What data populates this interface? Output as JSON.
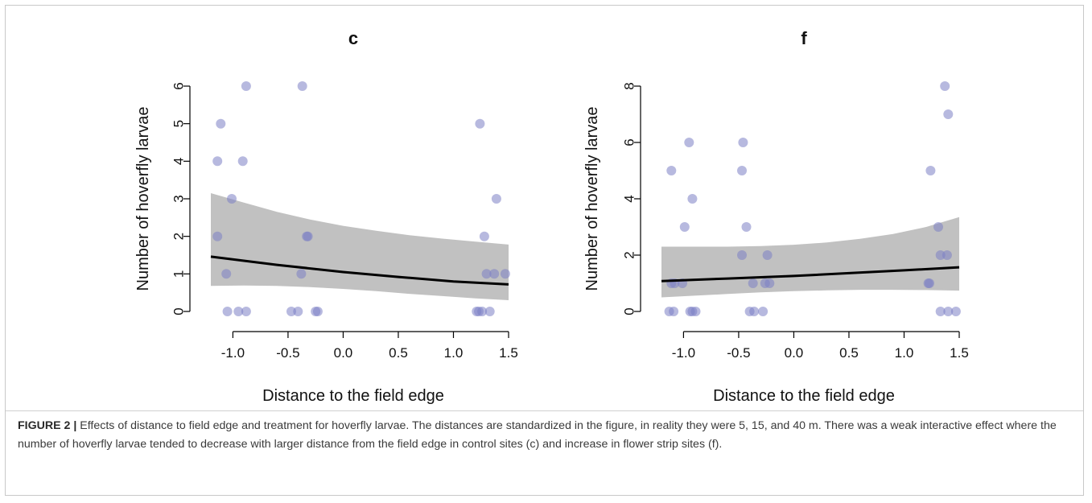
{
  "figure": {
    "caption_label": "FIGURE 2 |",
    "caption_text": " Effects of distance to field edge and treatment for hoverfly larvae. The distances are standardized in the figure, in reality they were 5, 15, and 40 m. There was a weak interactive effect where the number of hoverfly larvae tended to decrease with larger distance from the field edge in control sites (c) and increase in flower strip sites (f)."
  },
  "colors": {
    "point": "#7b7fc4",
    "band": "#c1c1c1",
    "fit_line": "#000000"
  },
  "chart_data": [
    {
      "type": "scatter",
      "title": "c",
      "xlabel": "Distance to the field edge",
      "ylabel": "Number of hoverfly larvae",
      "xlim": [
        -1.2,
        1.5
      ],
      "ylim": [
        0,
        6
      ],
      "x_ticks": [
        -1.0,
        -0.5,
        0.0,
        0.5,
        1.0,
        1.5
      ],
      "x_tick_labels": [
        "-1.0",
        "-0.5",
        "0.0",
        "0.5",
        "1.0",
        "1.5"
      ],
      "y_ticks": [
        0,
        1,
        2,
        3,
        4,
        5,
        6
      ],
      "y_tick_labels": [
        "0",
        "1",
        "2",
        "3",
        "4",
        "5",
        "6"
      ],
      "points": [
        [
          -1.14,
          4
        ],
        [
          -1.11,
          5
        ],
        [
          -1.14,
          2
        ],
        [
          -1.06,
          1
        ],
        [
          -1.05,
          0
        ],
        [
          -1.01,
          3
        ],
        [
          -0.95,
          0
        ],
        [
          -0.91,
          4
        ],
        [
          -0.88,
          6
        ],
        [
          -0.88,
          0
        ],
        [
          -0.37,
          6
        ],
        [
          -0.38,
          1
        ],
        [
          -0.33,
          2
        ],
        [
          -0.32,
          2
        ],
        [
          -0.47,
          0
        ],
        [
          -0.41,
          0
        ],
        [
          -0.25,
          0
        ],
        [
          -0.23,
          0
        ],
        [
          1.24,
          5
        ],
        [
          1.28,
          2
        ],
        [
          1.39,
          3
        ],
        [
          1.3,
          1
        ],
        [
          1.37,
          1
        ],
        [
          1.47,
          1
        ],
        [
          1.21,
          0
        ],
        [
          1.23,
          0
        ],
        [
          1.26,
          0
        ],
        [
          1.33,
          0
        ]
      ],
      "fit_line": [
        [
          -1.2,
          1.46
        ],
        [
          -0.6,
          1.24
        ],
        [
          0.0,
          1.05
        ],
        [
          0.5,
          0.92
        ],
        [
          1.0,
          0.8
        ],
        [
          1.5,
          0.72
        ]
      ],
      "ci_upper": [
        [
          -1.2,
          3.15
        ],
        [
          -0.9,
          2.9
        ],
        [
          -0.6,
          2.65
        ],
        [
          -0.3,
          2.45
        ],
        [
          0.0,
          2.28
        ],
        [
          0.3,
          2.15
        ],
        [
          0.6,
          2.03
        ],
        [
          0.9,
          1.94
        ],
        [
          1.2,
          1.86
        ],
        [
          1.5,
          1.78
        ]
      ],
      "ci_lower": [
        [
          -1.2,
          0.68
        ],
        [
          -0.9,
          0.69
        ],
        [
          -0.6,
          0.68
        ],
        [
          -0.3,
          0.65
        ],
        [
          0.0,
          0.6
        ],
        [
          0.3,
          0.54
        ],
        [
          0.6,
          0.47
        ],
        [
          0.9,
          0.41
        ],
        [
          1.2,
          0.35
        ],
        [
          1.5,
          0.3
        ]
      ]
    },
    {
      "type": "scatter",
      "title": "f",
      "xlabel": "Distance to the field edge",
      "ylabel": "Number of hoverfly larvae",
      "xlim": [
        -1.2,
        1.5
      ],
      "ylim": [
        0,
        8
      ],
      "x_ticks": [
        -1.0,
        -0.5,
        0.0,
        0.5,
        1.0,
        1.5
      ],
      "x_tick_labels": [
        "-1.0",
        "-0.5",
        "0.0",
        "0.5",
        "1.0",
        "1.5"
      ],
      "y_ticks": [
        0,
        2,
        4,
        6,
        8
      ],
      "y_tick_labels": [
        "0",
        "2",
        "4",
        "6",
        "8"
      ],
      "points": [
        [
          -1.11,
          5
        ],
        [
          -1.11,
          1
        ],
        [
          -1.08,
          1
        ],
        [
          -1.13,
          0
        ],
        [
          -1.09,
          0
        ],
        [
          -1.01,
          1
        ],
        [
          -0.99,
          3
        ],
        [
          -0.95,
          6
        ],
        [
          -0.92,
          4
        ],
        [
          -0.94,
          0
        ],
        [
          -0.92,
          0
        ],
        [
          -0.89,
          0
        ],
        [
          -0.47,
          5
        ],
        [
          -0.46,
          6
        ],
        [
          -0.43,
          3
        ],
        [
          -0.47,
          2
        ],
        [
          -0.37,
          1
        ],
        [
          -0.4,
          0
        ],
        [
          -0.36,
          0
        ],
        [
          -0.28,
          0
        ],
        [
          -0.26,
          1
        ],
        [
          -0.24,
          2
        ],
        [
          -0.22,
          1
        ],
        [
          1.22,
          1
        ],
        [
          1.23,
          1
        ],
        [
          1.24,
          5
        ],
        [
          1.31,
          3
        ],
        [
          1.33,
          2
        ],
        [
          1.39,
          2
        ],
        [
          1.37,
          8
        ],
        [
          1.4,
          7
        ],
        [
          1.33,
          0
        ],
        [
          1.4,
          0
        ],
        [
          1.47,
          0
        ]
      ],
      "fit_line": [
        [
          -1.2,
          1.08
        ],
        [
          -0.6,
          1.17
        ],
        [
          0.0,
          1.26
        ],
        [
          0.5,
          1.36
        ],
        [
          1.0,
          1.46
        ],
        [
          1.5,
          1.57
        ]
      ],
      "ci_upper": [
        [
          -1.2,
          2.3
        ],
        [
          -0.9,
          2.3
        ],
        [
          -0.6,
          2.3
        ],
        [
          -0.3,
          2.32
        ],
        [
          0.0,
          2.37
        ],
        [
          0.3,
          2.45
        ],
        [
          0.6,
          2.58
        ],
        [
          0.9,
          2.75
        ],
        [
          1.2,
          3.0
        ],
        [
          1.5,
          3.35
        ]
      ],
      "ci_lower": [
        [
          -1.2,
          0.5
        ],
        [
          -0.9,
          0.56
        ],
        [
          -0.6,
          0.62
        ],
        [
          -0.3,
          0.68
        ],
        [
          0.0,
          0.72
        ],
        [
          0.3,
          0.75
        ],
        [
          0.6,
          0.77
        ],
        [
          0.9,
          0.77
        ],
        [
          1.2,
          0.76
        ],
        [
          1.5,
          0.74
        ]
      ]
    }
  ]
}
